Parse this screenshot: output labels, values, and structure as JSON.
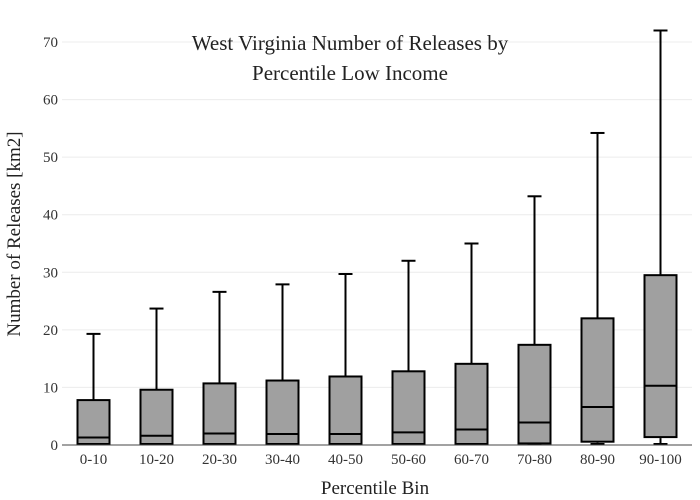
{
  "chart_data": {
    "type": "box",
    "title_lines": [
      "West Virginia Number of Releases by",
      "Percentile Low Income"
    ],
    "xlabel": "Percentile Bin",
    "ylabel": "Number of Releases  [km2]",
    "ylim": [
      0,
      73
    ],
    "yticks": [
      0,
      10,
      20,
      30,
      40,
      50,
      60,
      70
    ],
    "grid": true,
    "box_color": "#a0a0a0",
    "categories": [
      "0-10",
      "10-20",
      "20-30",
      "30-40",
      "40-50",
      "50-60",
      "60-70",
      "70-80",
      "80-90",
      "90-100"
    ],
    "boxes": [
      {
        "min": 0,
        "q1": 0,
        "median": 1.3,
        "q3": 7.8,
        "max": 19.3
      },
      {
        "min": 0,
        "q1": 0,
        "median": 1.6,
        "q3": 9.6,
        "max": 23.7
      },
      {
        "min": 0,
        "q1": 0,
        "median": 2.0,
        "q3": 10.7,
        "max": 26.6
      },
      {
        "min": 0,
        "q1": 0,
        "median": 1.9,
        "q3": 11.2,
        "max": 27.9
      },
      {
        "min": 0,
        "q1": 0,
        "median": 1.9,
        "q3": 11.9,
        "max": 29.7
      },
      {
        "min": 0,
        "q1": 0,
        "median": 2.2,
        "q3": 12.8,
        "max": 32.0
      },
      {
        "min": 0,
        "q1": 0,
        "median": 2.7,
        "q3": 14.1,
        "max": 35.0
      },
      {
        "min": 0,
        "q1": 0.1,
        "median": 3.9,
        "q3": 17.4,
        "max": 43.2
      },
      {
        "min": 0,
        "q1": 0.4,
        "median": 6.6,
        "q3": 22.0,
        "max": 54.2
      },
      {
        "min": 0,
        "q1": 1.2,
        "median": 10.3,
        "q3": 29.5,
        "max": 72.0
      }
    ]
  }
}
